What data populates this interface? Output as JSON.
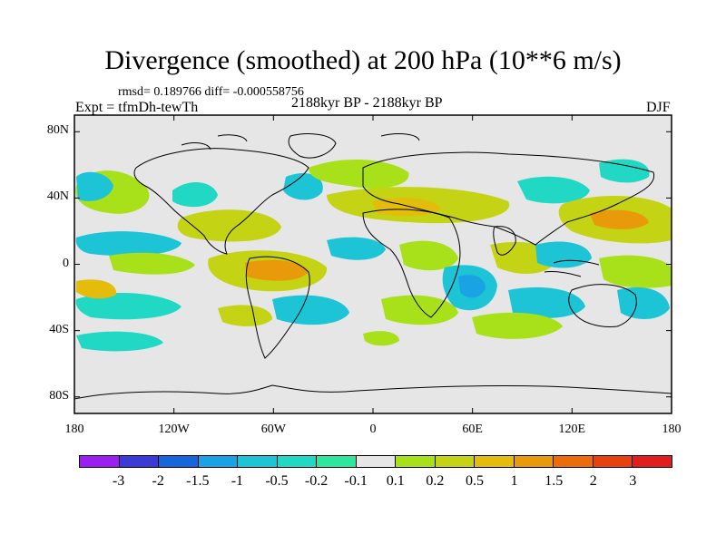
{
  "title": "Divergence (smoothed) at 200 hPa (10**6 m/s)",
  "stats": "rmsd= 0.189766 diff= -0.000558756",
  "expt": "Expt = tfmDh-tewTh",
  "period": "2188kyr BP - 2188kyr BP",
  "season": "DJF",
  "map": {
    "lat_labels": [
      "80N",
      "40N",
      "0",
      "40S",
      "80S"
    ],
    "lon_labels": [
      "180",
      "120W",
      "60W",
      "0",
      "60E",
      "120E",
      "180"
    ],
    "lat_values": [
      80,
      40,
      0,
      -40,
      -80
    ],
    "lon_values": [
      -180,
      -120,
      -60,
      0,
      60,
      120,
      180
    ],
    "background": "#e6e6e6"
  },
  "colorbar": {
    "colors": [
      "#9b1ff0",
      "#3b3ad6",
      "#1565dc",
      "#1aa3e4",
      "#1dc4d6",
      "#20d8c3",
      "#2ee69e",
      "#e6e6e6",
      "#a8e01a",
      "#c4d314",
      "#e3bc0c",
      "#e89a0a",
      "#ea6c0a",
      "#e8400f",
      "#e01e1e"
    ],
    "labels": [
      "-3",
      "-2",
      "-1.5",
      "-1",
      "-0.5",
      "-0.2",
      "-0.1",
      "0.1",
      "0.2",
      "0.5",
      "1",
      "1.5",
      "2",
      "3"
    ]
  }
}
